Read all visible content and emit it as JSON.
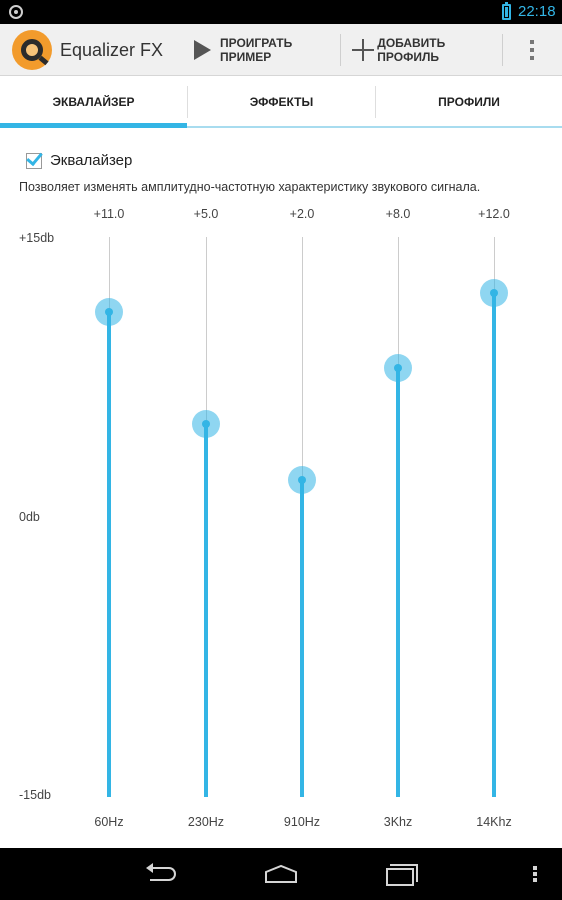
{
  "status_bar": {
    "time": "22:18",
    "left_icon": "notification-icon",
    "battery_icon": "battery-icon"
  },
  "action_bar": {
    "app_title": "Equalizer FX",
    "play_label": "ПРОИГРАТЬ ПРИМЕР",
    "add_profile_label": "ДОБАВИТЬ ПРОФИЛЬ",
    "overflow_icon": "overflow-menu-icon"
  },
  "tabs": [
    {
      "label": "ЭКВАЛАЙЗЕР",
      "selected": true
    },
    {
      "label": "ЭФФЕКТЫ",
      "selected": false
    },
    {
      "label": "ПРОФИЛИ",
      "selected": false
    }
  ],
  "equalizer": {
    "enabled": true,
    "checkbox_label": "Эквалайзер",
    "description": "Позволяет изменять амплитудно-частотную характеристику звукового сигнала.",
    "scale": {
      "max_label": "+15db",
      "mid_label": "0db",
      "min_label": "-15db",
      "max": 15,
      "min": -15
    },
    "bands": [
      {
        "freq": "60Hz",
        "value_label": "+11.0",
        "value": 11.0
      },
      {
        "freq": "230Hz",
        "value_label": "+5.0",
        "value": 5.0
      },
      {
        "freq": "910Hz",
        "value_label": "+2.0",
        "value": 2.0
      },
      {
        "freq": "3Khz",
        "value_label": "+8.0",
        "value": 8.0
      },
      {
        "freq": "14Khz",
        "value_label": "+12.0",
        "value": 12.0
      }
    ]
  },
  "colors": {
    "accent": "#33b5e5",
    "accent_thumb": "#8fd3f0",
    "nav_bar": "#000000"
  },
  "nav_bar": {
    "back": "back-icon",
    "home": "home-icon",
    "recents": "recents-icon",
    "menu": "menu-icon"
  }
}
